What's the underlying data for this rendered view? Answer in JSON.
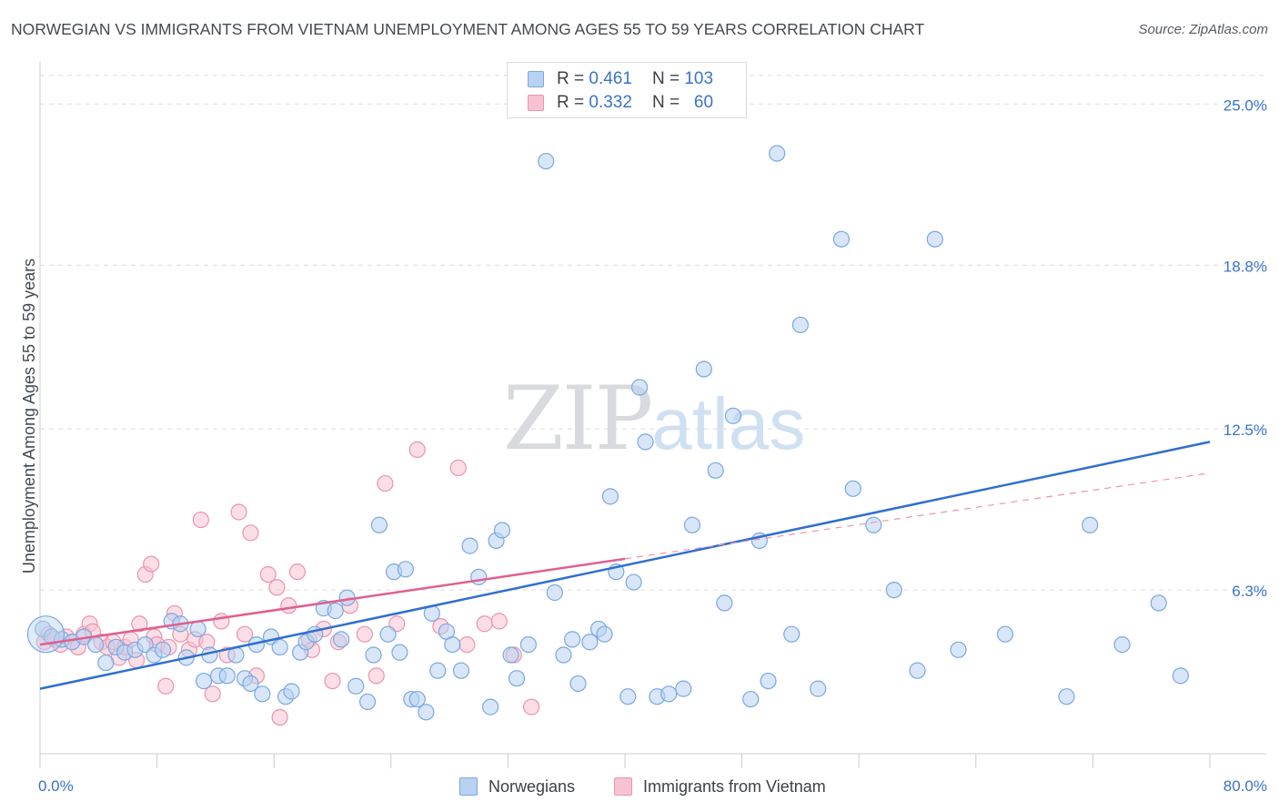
{
  "title": "NORWEGIAN VS IMMIGRANTS FROM VIETNAM UNEMPLOYMENT AMONG AGES 55 TO 59 YEARS CORRELATION CHART",
  "source": "Source: ZipAtlas.com",
  "watermark": {
    "zip": "ZIP",
    "atlas": "atlas"
  },
  "legend": {
    "rows": [
      {
        "r_label": "R = ",
        "r_value": "0.461",
        "n_label": "N = ",
        "n_value": "103"
      },
      {
        "r_label": "R = ",
        "r_value": "0.332",
        "n_label": "N = ",
        "n_value": "60"
      }
    ]
  },
  "bottom_legend": {
    "series1": "Norwegians",
    "series2": "Immigrants from Vietnam"
  },
  "colors": {
    "blue_fill": "#b8d2f2",
    "blue_stroke": "#7aa8e0",
    "blue_line": "#2f6fd0",
    "pink_fill": "#f7c3d2",
    "pink_stroke": "#ec93ad",
    "pink_line": "#e0608f",
    "grid": "#d9dce0",
    "axis_text": "#3a73c8"
  },
  "chart_data": {
    "type": "scatter",
    "title": "NORWEGIAN VS IMMIGRANTS FROM VIETNAM UNEMPLOYMENT AMONG AGES 55 TO 59 YEARS CORRELATION CHART",
    "xlabel": "",
    "ylabel": "Unemployment Among Ages 55 to 59 years",
    "xlim": [
      0,
      80
    ],
    "ylim": [
      0,
      26.2
    ],
    "x_tick_labels": [
      "0.0%",
      "80.0%"
    ],
    "y_ticks": [
      6.3,
      12.5,
      18.8,
      25.0
    ],
    "y_tick_labels": [
      "6.3%",
      "12.5%",
      "18.8%",
      "25.0%"
    ],
    "series": [
      {
        "name": "Norwegians",
        "r": 0.461,
        "n": 103,
        "trend": {
          "x": [
            0,
            80
          ],
          "y": [
            2.5,
            12.0
          ],
          "style": "solid"
        },
        "points": [
          [
            0.2,
            4.8
          ],
          [
            0.8,
            4.5
          ],
          [
            1.5,
            4.4
          ],
          [
            2.2,
            4.3
          ],
          [
            3.0,
            4.5
          ],
          [
            3.8,
            4.2
          ],
          [
            4.5,
            3.5
          ],
          [
            5.2,
            4.1
          ],
          [
            5.8,
            3.9
          ],
          [
            6.5,
            4.0
          ],
          [
            7.2,
            4.2
          ],
          [
            7.8,
            3.8
          ],
          [
            8.4,
            4.0
          ],
          [
            9.0,
            5.1
          ],
          [
            9.6,
            5.0
          ],
          [
            10.0,
            3.7
          ],
          [
            10.8,
            4.8
          ],
          [
            11.2,
            2.8
          ],
          [
            11.6,
            3.8
          ],
          [
            12.2,
            3.0
          ],
          [
            12.8,
            3.0
          ],
          [
            13.4,
            3.8
          ],
          [
            14.0,
            2.9
          ],
          [
            14.4,
            2.7
          ],
          [
            14.8,
            4.2
          ],
          [
            15.2,
            2.3
          ],
          [
            15.8,
            4.5
          ],
          [
            16.4,
            4.1
          ],
          [
            16.8,
            2.2
          ],
          [
            17.2,
            2.4
          ],
          [
            17.8,
            3.9
          ],
          [
            18.2,
            4.3
          ],
          [
            18.8,
            4.6
          ],
          [
            19.4,
            5.6
          ],
          [
            20.2,
            5.5
          ],
          [
            20.6,
            4.4
          ],
          [
            21.0,
            6.0
          ],
          [
            21.6,
            2.6
          ],
          [
            22.4,
            2.0
          ],
          [
            22.8,
            3.8
          ],
          [
            23.2,
            8.8
          ],
          [
            23.8,
            4.6
          ],
          [
            24.2,
            7.0
          ],
          [
            24.6,
            3.9
          ],
          [
            25.0,
            7.1
          ],
          [
            25.4,
            2.1
          ],
          [
            25.8,
            2.1
          ],
          [
            26.4,
            1.6
          ],
          [
            26.8,
            5.4
          ],
          [
            27.2,
            3.2
          ],
          [
            27.8,
            4.7
          ],
          [
            28.2,
            4.2
          ],
          [
            28.8,
            3.2
          ],
          [
            29.4,
            8.0
          ],
          [
            30.0,
            6.8
          ],
          [
            30.8,
            1.8
          ],
          [
            31.2,
            8.2
          ],
          [
            31.6,
            8.6
          ],
          [
            32.2,
            3.8
          ],
          [
            32.6,
            2.9
          ],
          [
            33.4,
            4.2
          ],
          [
            34.6,
            22.8
          ],
          [
            35.2,
            6.2
          ],
          [
            35.8,
            3.8
          ],
          [
            36.4,
            4.4
          ],
          [
            36.8,
            2.7
          ],
          [
            37.6,
            4.3
          ],
          [
            38.2,
            4.8
          ],
          [
            38.6,
            4.6
          ],
          [
            39.0,
            9.9
          ],
          [
            39.4,
            7.0
          ],
          [
            40.2,
            2.2
          ],
          [
            40.6,
            6.6
          ],
          [
            41.0,
            14.1
          ],
          [
            41.4,
            12.0
          ],
          [
            42.2,
            2.2
          ],
          [
            43.0,
            2.3
          ],
          [
            44.0,
            2.5
          ],
          [
            44.6,
            8.8
          ],
          [
            45.4,
            14.8
          ],
          [
            46.2,
            10.9
          ],
          [
            46.8,
            5.8
          ],
          [
            47.4,
            13.0
          ],
          [
            48.6,
            2.1
          ],
          [
            49.2,
            8.2
          ],
          [
            49.8,
            2.8
          ],
          [
            50.4,
            23.1
          ],
          [
            51.4,
            4.6
          ],
          [
            52.0,
            16.5
          ],
          [
            53.2,
            2.5
          ],
          [
            54.8,
            19.8
          ],
          [
            55.6,
            10.2
          ],
          [
            57.0,
            8.8
          ],
          [
            58.4,
            6.3
          ],
          [
            60.0,
            3.2
          ],
          [
            61.2,
            19.8
          ],
          [
            62.8,
            4.0
          ],
          [
            66.0,
            4.6
          ],
          [
            70.2,
            2.2
          ],
          [
            71.8,
            8.8
          ],
          [
            74.0,
            4.2
          ],
          [
            76.5,
            5.8
          ],
          [
            78.0,
            3.0
          ]
        ]
      },
      {
        "name": "Immigrants from Vietnam",
        "r": 0.332,
        "n": 60,
        "trend": {
          "x": [
            0,
            40
          ],
          "y": [
            4.2,
            7.5
          ],
          "style": "solid",
          "ext_x": [
            40,
            80
          ],
          "ext_y": [
            7.5,
            10.8
          ],
          "ext_style": "dashed"
        },
        "points": [
          [
            0.3,
            4.3
          ],
          [
            0.6,
            4.6
          ],
          [
            1.0,
            4.4
          ],
          [
            1.4,
            4.2
          ],
          [
            1.8,
            4.5
          ],
          [
            2.2,
            4.3
          ],
          [
            2.6,
            4.1
          ],
          [
            3.0,
            4.6
          ],
          [
            3.4,
            5.0
          ],
          [
            3.6,
            4.7
          ],
          [
            4.2,
            4.3
          ],
          [
            4.6,
            4.1
          ],
          [
            5.0,
            4.3
          ],
          [
            5.4,
            3.7
          ],
          [
            5.8,
            4.1
          ],
          [
            6.2,
            4.4
          ],
          [
            6.6,
            3.6
          ],
          [
            6.8,
            5.0
          ],
          [
            7.2,
            6.9
          ],
          [
            7.6,
            7.3
          ],
          [
            7.8,
            4.5
          ],
          [
            8.0,
            4.2
          ],
          [
            8.6,
            2.6
          ],
          [
            8.8,
            4.1
          ],
          [
            9.2,
            5.4
          ],
          [
            9.6,
            4.6
          ],
          [
            10.2,
            4.0
          ],
          [
            10.6,
            4.4
          ],
          [
            11.0,
            9.0
          ],
          [
            11.4,
            4.3
          ],
          [
            11.8,
            2.3
          ],
          [
            12.4,
            5.1
          ],
          [
            12.8,
            3.8
          ],
          [
            13.6,
            9.3
          ],
          [
            14.0,
            4.6
          ],
          [
            14.4,
            8.5
          ],
          [
            14.8,
            3.0
          ],
          [
            15.6,
            6.9
          ],
          [
            16.2,
            6.4
          ],
          [
            16.4,
            1.4
          ],
          [
            17.0,
            5.7
          ],
          [
            17.6,
            7.0
          ],
          [
            18.4,
            4.4
          ],
          [
            18.6,
            4.0
          ],
          [
            19.4,
            4.8
          ],
          [
            20.0,
            2.8
          ],
          [
            20.4,
            4.3
          ],
          [
            21.2,
            5.7
          ],
          [
            22.2,
            4.6
          ],
          [
            23.0,
            3.0
          ],
          [
            23.6,
            10.4
          ],
          [
            24.4,
            5.0
          ],
          [
            25.8,
            11.7
          ],
          [
            27.4,
            4.9
          ],
          [
            28.6,
            11.0
          ],
          [
            29.2,
            4.2
          ],
          [
            30.4,
            5.0
          ],
          [
            31.4,
            5.1
          ],
          [
            32.4,
            3.8
          ],
          [
            33.6,
            1.8
          ]
        ]
      }
    ]
  }
}
